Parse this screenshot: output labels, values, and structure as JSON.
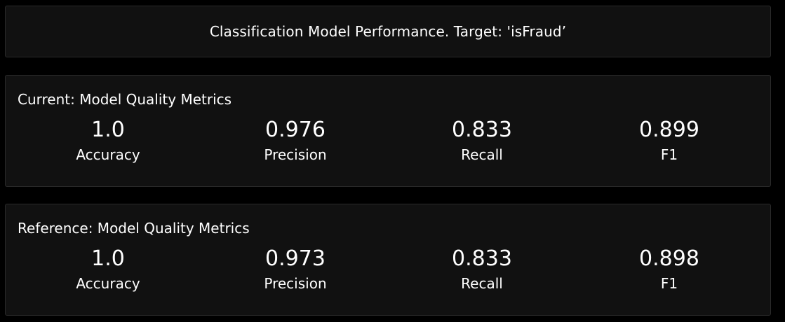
{
  "title": "Classification Model Performance. Target: 'isFraud’",
  "current": {
    "heading": "Current: Model Quality Metrics",
    "metrics": [
      {
        "value": "1.0",
        "label": "Accuracy"
      },
      {
        "value": "0.976",
        "label": "Precision"
      },
      {
        "value": "0.833",
        "label": "Recall"
      },
      {
        "value": "0.899",
        "label": "F1"
      }
    ]
  },
  "reference": {
    "heading": "Reference: Model Quality Metrics",
    "metrics": [
      {
        "value": "1.0",
        "label": "Accuracy"
      },
      {
        "value": "0.973",
        "label": "Precision"
      },
      {
        "value": "0.833",
        "label": "Recall"
      },
      {
        "value": "0.898",
        "label": "F1"
      }
    ]
  },
  "colors": {
    "background": "#000000",
    "panel": "#111111",
    "border": "#2a2a2a",
    "text": "#ffffff"
  }
}
